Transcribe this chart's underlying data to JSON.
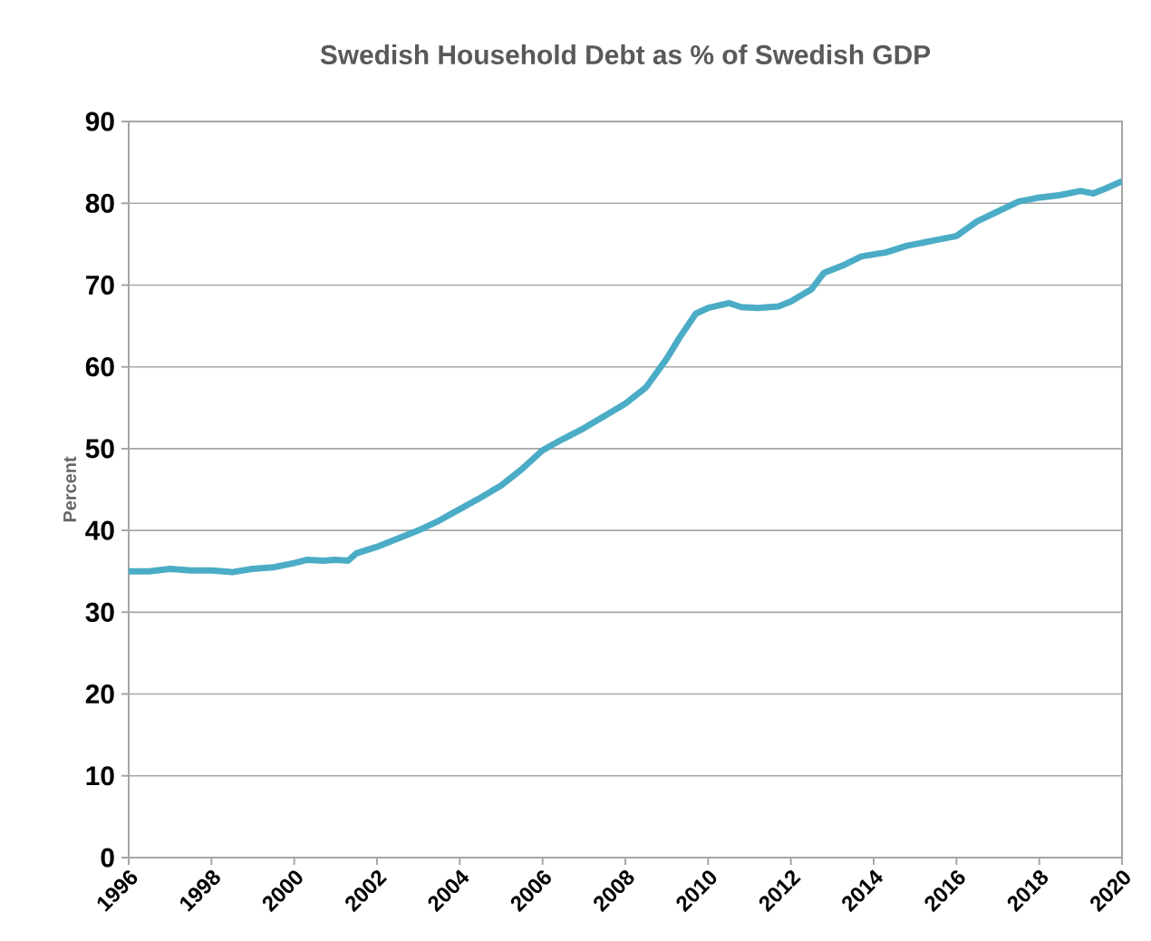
{
  "chart_data": {
    "type": "line",
    "title": "Swedish Household Debt as % of Swedish GDP",
    "ylabel": "Percent",
    "color": "#4bacc6",
    "grid": "y",
    "marker": "none",
    "line_style": "solid",
    "x": [
      1996,
      1996.5,
      1997,
      1997.5,
      1998,
      1998.5,
      1999,
      1999.5,
      2000,
      2000.3,
      2000.7,
      2001,
      2001.3,
      2001.5,
      2002,
      2002.5,
      2003,
      2003.5,
      2004,
      2004.5,
      2005,
      2005.5,
      2006,
      2006.5,
      2007,
      2007.5,
      2008,
      2008.5,
      2009,
      2009.3,
      2009.7,
      2010,
      2010.5,
      2010.8,
      2011.2,
      2011.7,
      2012,
      2012.5,
      2012.8,
      2013.3,
      2013.7,
      2014.3,
      2014.8,
      2015,
      2015.5,
      2016,
      2016.5,
      2017,
      2017.5,
      2018,
      2018.5,
      2019,
      2019.3,
      2019.6,
      2020
    ],
    "values": [
      35.0,
      35.0,
      35.3,
      35.1,
      35.1,
      34.9,
      35.3,
      35.5,
      36.0,
      36.4,
      36.3,
      36.4,
      36.3,
      37.2,
      38.0,
      39.0,
      40.0,
      41.2,
      42.6,
      44.0,
      45.5,
      47.5,
      49.8,
      51.2,
      52.5,
      54.0,
      55.5,
      57.5,
      61.0,
      63.5,
      66.5,
      67.2,
      67.8,
      67.3,
      67.2,
      67.4,
      68.0,
      69.5,
      71.5,
      72.5,
      73.5,
      74.0,
      74.8,
      75.0,
      75.5,
      76.0,
      77.8,
      79.0,
      80.2,
      80.7,
      81.0,
      81.5,
      81.2,
      81.8,
      82.7
    ],
    "xlim": [
      1996,
      2020
    ],
    "xticks": [
      1996,
      1998,
      2000,
      2002,
      2004,
      2006,
      2008,
      2010,
      2012,
      2014,
      2016,
      2018,
      2020
    ],
    "ylim": [
      0,
      90
    ],
    "yticks": [
      0,
      10,
      20,
      30,
      40,
      50,
      60,
      70,
      80,
      90
    ]
  }
}
